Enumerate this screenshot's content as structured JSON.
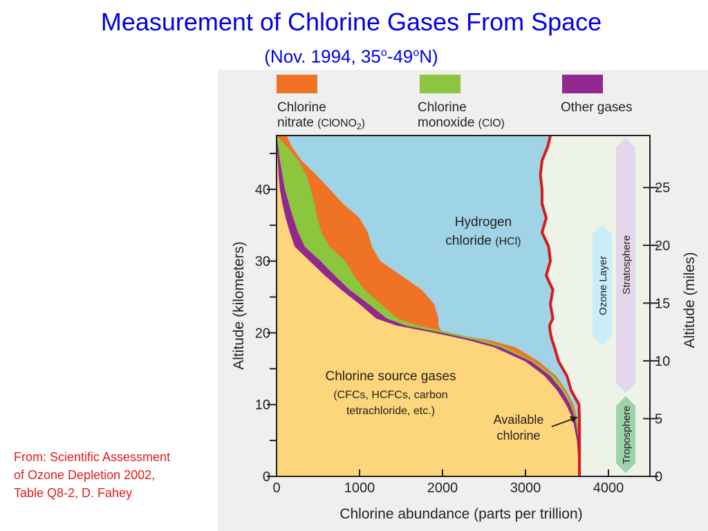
{
  "title": "Measurement of Chlorine Gases From Space",
  "subtitle": {
    "prefix": "(Nov. 1994, 35",
    "sup1": "o",
    "mid": "-49",
    "sup2": "o",
    "suffix": "N)"
  },
  "source_note": "From: Scientific Assessment of Ozone Depletion 2002, Table Q8-2, D. Fahey",
  "colors": {
    "chlorine_nitrate": "#f07224",
    "chlorine_monoxide": "#8cc63f",
    "other_gases": "#92278f",
    "hydrogen_chloride": "#9fd3e6",
    "source_gases": "#fdd57a",
    "available_chlorine_line": "#d7191c",
    "ozone_layer": "#c9ecf8",
    "stratosphere": "#e6d6ec",
    "troposphere": "#9dd3a8",
    "plot_background": "#eef3e8"
  },
  "legend": [
    {
      "line1": "Chlorine",
      "line2": "nitrate",
      "formula_prefix": "(ClONO",
      "formula_sub": "2",
      "formula_suffix": ")",
      "color_key": "chlorine_nitrate"
    },
    {
      "line1": "Chlorine",
      "line2": "monoxide",
      "formula_prefix": "(ClO)",
      "formula_sub": "",
      "formula_suffix": "",
      "color_key": "chlorine_monoxide"
    },
    {
      "line1": "Other gases",
      "line2": "",
      "formula_prefix": "",
      "formula_sub": "",
      "formula_suffix": "",
      "color_key": "other_gases"
    }
  ],
  "annotations": {
    "hcl": {
      "line1": "Hydrogen",
      "line2a": "chloride",
      "line2b": "(HCl)"
    },
    "source": {
      "line1": "Chlorine source gases",
      "line2": "(CFCs, HCFCs, carbon",
      "line3": "tetrachloride, etc.)"
    },
    "available": {
      "line1": "Available",
      "line2": "chlorine"
    },
    "ozone_layer": "Ozone Layer",
    "stratosphere": "Stratosphere",
    "troposphere": "Troposphere"
  },
  "chart_data": {
    "type": "area",
    "stacked": true,
    "orientation": "horizontal",
    "xlabel": "Chlorine abundance (parts per trillion)",
    "ylabel": "Altitude (kilometers)",
    "y2label": "Altitude (miles)",
    "xlim": [
      0,
      4500
    ],
    "ylim": [
      0,
      47.5
    ],
    "y2lim": [
      0,
      29.5
    ],
    "xticks": [
      0,
      1000,
      2000,
      3000,
      4000
    ],
    "yticks": [
      0,
      10,
      20,
      30,
      40
    ],
    "y2ticks": [
      0,
      5,
      10,
      15,
      20,
      25
    ],
    "altitude_km": [
      0,
      5,
      8,
      10,
      12,
      14,
      16,
      18,
      19,
      20,
      21,
      22,
      24,
      26,
      28,
      30,
      32,
      34,
      36,
      38,
      40,
      42,
      44,
      46,
      47.5
    ],
    "series": [
      {
        "name": "Chlorine source gases",
        "color_key": "source_gases",
        "cumulative_x": [
          3650,
          3620,
          3570,
          3490,
          3380,
          3230,
          3000,
          2620,
          2300,
          1900,
          1450,
          1200,
          1000,
          780,
          580,
          400,
          220,
          160,
          110,
          70,
          40,
          25,
          15,
          5,
          0
        ]
      },
      {
        "name": "Other gases",
        "color_key": "other_gases",
        "cumulative_x": [
          3650,
          3640,
          3600,
          3540,
          3440,
          3300,
          3070,
          2700,
          2390,
          2000,
          1560,
          1330,
          1110,
          880,
          700,
          530,
          340,
          260,
          200,
          150,
          100,
          70,
          40,
          20,
          0
        ]
      },
      {
        "name": "Chlorine monoxide",
        "color_key": "chlorine_monoxide",
        "cumulative_x": [
          3650,
          3645,
          3610,
          3560,
          3470,
          3340,
          3100,
          2760,
          2480,
          2110,
          1700,
          1460,
          1260,
          1060,
          930,
          830,
          640,
          540,
          490,
          460,
          410,
          360,
          260,
          120,
          0
        ]
      },
      {
        "name": "Chlorine nitrate",
        "color_key": "chlorine_nitrate",
        "cumulative_x": [
          3650,
          3650,
          3620,
          3580,
          3490,
          3370,
          3160,
          2880,
          2560,
          2000,
          1950,
          1950,
          1900,
          1750,
          1500,
          1250,
          1150,
          1100,
          1000,
          800,
          640,
          480,
          300,
          180,
          120
        ]
      },
      {
        "name": "Hydrogen chloride",
        "color_key": "hydrogen_chloride",
        "cumulative_x": [
          3650,
          3650,
          3650,
          3645,
          3550,
          3500,
          3400,
          3350,
          3320,
          3300,
          3290,
          3330,
          3300,
          3330,
          3250,
          3300,
          3280,
          3200,
          3250,
          3200,
          3200,
          3180,
          3200,
          3270,
          3300
        ]
      }
    ]
  }
}
